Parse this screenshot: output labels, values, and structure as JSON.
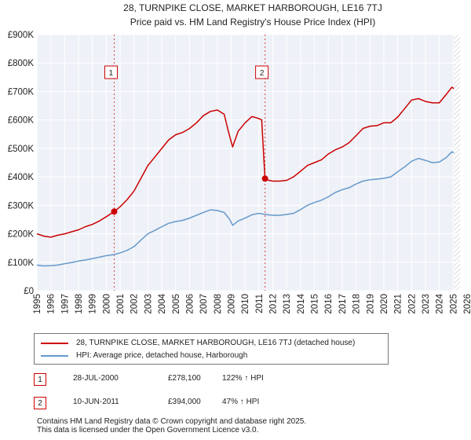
{
  "chart_data": {
    "type": "line",
    "title": "28, TURNPIKE CLOSE, MARKET HARBOROUGH, LE16 7TJ",
    "subtitle": "Price paid vs. HM Land Registry's House Price Index (HPI)",
    "xlim": [
      1995,
      2026
    ],
    "ylim": [
      0,
      900000
    ],
    "y_ticks": [
      0,
      100000,
      200000,
      300000,
      400000,
      500000,
      600000,
      700000,
      800000,
      900000
    ],
    "y_tick_labels": [
      "£0",
      "£100K",
      "£200K",
      "£300K",
      "£400K",
      "£500K",
      "£600K",
      "£700K",
      "£800K",
      "£900K"
    ],
    "x_ticks": [
      1995,
      1996,
      1997,
      1998,
      1999,
      2000,
      2001,
      2002,
      2003,
      2004,
      2005,
      2006,
      2007,
      2008,
      2009,
      2010,
      2011,
      2012,
      2013,
      2014,
      2015,
      2016,
      2017,
      2018,
      2019,
      2020,
      2021,
      2022,
      2023,
      2024,
      2025,
      2026
    ],
    "x_tick_labels": [
      "1995",
      "1996",
      "1997",
      "1998",
      "1999",
      "2000",
      "2001",
      "2002",
      "2003",
      "2004",
      "2005",
      "2006",
      "2007",
      "2008",
      "2009",
      "2010",
      "2011",
      "2012",
      "2013",
      "2014",
      "2015",
      "2016",
      "2017",
      "2018",
      "2019",
      "2020",
      "2021",
      "2022",
      "2023",
      "2024",
      "2025",
      "2026"
    ],
    "grid": true,
    "forecast_start": 2025.1,
    "series": [
      {
        "name": "28, TURNPIKE CLOSE, MARKET HARBOROUGH, LE16 7TJ (detached house)",
        "color": "#cc0000",
        "points": [
          [
            1995.0,
            200000
          ],
          [
            1995.5,
            192000
          ],
          [
            1996.0,
            188000
          ],
          [
            1996.5,
            195000
          ],
          [
            1997.0,
            200000
          ],
          [
            1997.5,
            207000
          ],
          [
            1998.0,
            214000
          ],
          [
            1998.5,
            225000
          ],
          [
            1999.0,
            233000
          ],
          [
            1999.5,
            245000
          ],
          [
            2000.0,
            260000
          ],
          [
            2000.57,
            278100
          ],
          [
            2001.0,
            295000
          ],
          [
            2001.5,
            320000
          ],
          [
            2002.0,
            350000
          ],
          [
            2002.5,
            395000
          ],
          [
            2003.0,
            440000
          ],
          [
            2003.5,
            470000
          ],
          [
            2004.0,
            500000
          ],
          [
            2004.5,
            530000
          ],
          [
            2005.0,
            548000
          ],
          [
            2005.5,
            556000
          ],
          [
            2006.0,
            570000
          ],
          [
            2006.5,
            590000
          ],
          [
            2007.0,
            615000
          ],
          [
            2007.5,
            630000
          ],
          [
            2008.0,
            635000
          ],
          [
            2008.5,
            620000
          ],
          [
            2008.8,
            560000
          ],
          [
            2009.1,
            505000
          ],
          [
            2009.5,
            560000
          ],
          [
            2010.0,
            590000
          ],
          [
            2010.5,
            612000
          ],
          [
            2011.0,
            605000
          ],
          [
            2011.2,
            600000
          ],
          [
            2011.35,
            470000
          ],
          [
            2011.44,
            394000
          ],
          [
            2011.7,
            388000
          ],
          [
            2012.0,
            385000
          ],
          [
            2012.5,
            385000
          ],
          [
            2013.0,
            388000
          ],
          [
            2013.5,
            400000
          ],
          [
            2014.0,
            420000
          ],
          [
            2014.5,
            440000
          ],
          [
            2015.0,
            450000
          ],
          [
            2015.5,
            460000
          ],
          [
            2016.0,
            480000
          ],
          [
            2016.5,
            495000
          ],
          [
            2017.0,
            505000
          ],
          [
            2017.5,
            520000
          ],
          [
            2018.0,
            545000
          ],
          [
            2018.5,
            570000
          ],
          [
            2019.0,
            578000
          ],
          [
            2019.5,
            580000
          ],
          [
            2020.0,
            590000
          ],
          [
            2020.5,
            590000
          ],
          [
            2021.0,
            610000
          ],
          [
            2021.5,
            640000
          ],
          [
            2022.0,
            670000
          ],
          [
            2022.5,
            675000
          ],
          [
            2023.0,
            665000
          ],
          [
            2023.5,
            660000
          ],
          [
            2024.0,
            660000
          ],
          [
            2024.5,
            690000
          ],
          [
            2024.9,
            715000
          ],
          [
            2025.05,
            710000
          ]
        ]
      },
      {
        "name": "HPI: Average price, detached house, Harborough",
        "color": "#6699cc",
        "points": [
          [
            1995.0,
            90000
          ],
          [
            1995.5,
            87000
          ],
          [
            1996.0,
            88000
          ],
          [
            1996.5,
            90000
          ],
          [
            1997.0,
            95000
          ],
          [
            1997.5,
            99000
          ],
          [
            1998.0,
            104000
          ],
          [
            1998.5,
            108000
          ],
          [
            1999.0,
            113000
          ],
          [
            1999.5,
            118000
          ],
          [
            2000.0,
            123000
          ],
          [
            2000.57,
            127000
          ],
          [
            2001.0,
            133000
          ],
          [
            2001.5,
            142000
          ],
          [
            2002.0,
            155000
          ],
          [
            2002.5,
            178000
          ],
          [
            2003.0,
            200000
          ],
          [
            2003.5,
            212000
          ],
          [
            2004.0,
            225000
          ],
          [
            2004.5,
            237000
          ],
          [
            2005.0,
            243000
          ],
          [
            2005.5,
            247000
          ],
          [
            2006.0,
            255000
          ],
          [
            2006.5,
            265000
          ],
          [
            2007.0,
            275000
          ],
          [
            2007.5,
            284000
          ],
          [
            2008.0,
            282000
          ],
          [
            2008.5,
            275000
          ],
          [
            2008.9,
            250000
          ],
          [
            2009.1,
            230000
          ],
          [
            2009.5,
            245000
          ],
          [
            2010.0,
            255000
          ],
          [
            2010.5,
            267000
          ],
          [
            2011.0,
            272000
          ],
          [
            2011.44,
            268000
          ],
          [
            2012.0,
            265000
          ],
          [
            2012.5,
            265000
          ],
          [
            2013.0,
            268000
          ],
          [
            2013.5,
            272000
          ],
          [
            2014.0,
            285000
          ],
          [
            2014.5,
            300000
          ],
          [
            2015.0,
            310000
          ],
          [
            2015.5,
            318000
          ],
          [
            2016.0,
            330000
          ],
          [
            2016.5,
            345000
          ],
          [
            2017.0,
            355000
          ],
          [
            2017.5,
            362000
          ],
          [
            2018.0,
            375000
          ],
          [
            2018.5,
            385000
          ],
          [
            2019.0,
            390000
          ],
          [
            2019.5,
            392000
          ],
          [
            2020.0,
            395000
          ],
          [
            2020.5,
            400000
          ],
          [
            2021.0,
            418000
          ],
          [
            2021.5,
            435000
          ],
          [
            2022.0,
            455000
          ],
          [
            2022.5,
            465000
          ],
          [
            2023.0,
            458000
          ],
          [
            2023.5,
            450000
          ],
          [
            2024.0,
            452000
          ],
          [
            2024.5,
            468000
          ],
          [
            2024.9,
            488000
          ],
          [
            2025.05,
            485000
          ]
        ]
      }
    ],
    "sales": [
      {
        "id": "1",
        "x": 2000.57,
        "y": 278100,
        "date": "28-JUL-2000",
        "price": "£278,100",
        "hpi_change": "122% ↑ HPI"
      },
      {
        "id": "2",
        "x": 2011.44,
        "y": 394000,
        "date": "10-JUN-2011",
        "price": "£394,000",
        "hpi_change": "47% ↑ HPI"
      }
    ]
  },
  "legend": {
    "property_label": "28, TURNPIKE CLOSE, MARKET HARBOROUGH, LE16 7TJ (detached house)",
    "hpi_label": "HPI: Average price, detached house, Harborough"
  },
  "footer": {
    "line1": "Contains HM Land Registry data © Crown copyright and database right 2025.",
    "line2": "This data is licensed under the Open Government Licence v3.0."
  }
}
